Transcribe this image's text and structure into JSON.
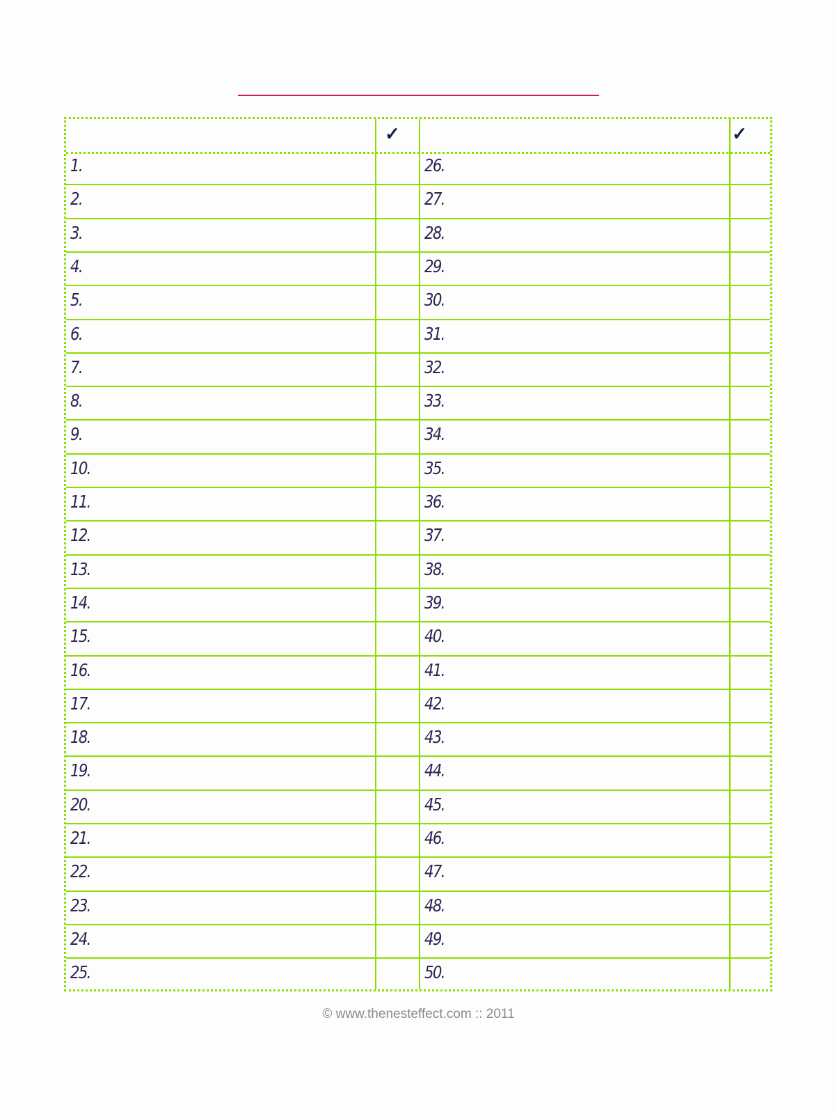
{
  "title_line_color": "#d6195a",
  "border_color": "#8fdc00",
  "header": {
    "check_left": "✓",
    "check_right": "✓"
  },
  "left_items": [
    "1.",
    "2.",
    "3.",
    "4.",
    "5.",
    "6.",
    "7.",
    "8.",
    "9.",
    "10.",
    "11.",
    "12.",
    "13.",
    "14.",
    "15.",
    "16.",
    "17.",
    "18.",
    "19.",
    "20.",
    "21.",
    "22.",
    "23.",
    "24.",
    "25."
  ],
  "right_items": [
    "26.",
    "27.",
    "28.",
    "29.",
    "30.",
    "31.",
    "32.",
    "33.",
    "34.",
    "35.",
    "36.",
    "37.",
    "38.",
    "39.",
    "40.",
    "41.",
    "42.",
    "43.",
    "44.",
    "45.",
    "46.",
    "47.",
    "48.",
    "49.",
    "50."
  ],
  "footer": "© www.thenesteffect.com :: 2011"
}
